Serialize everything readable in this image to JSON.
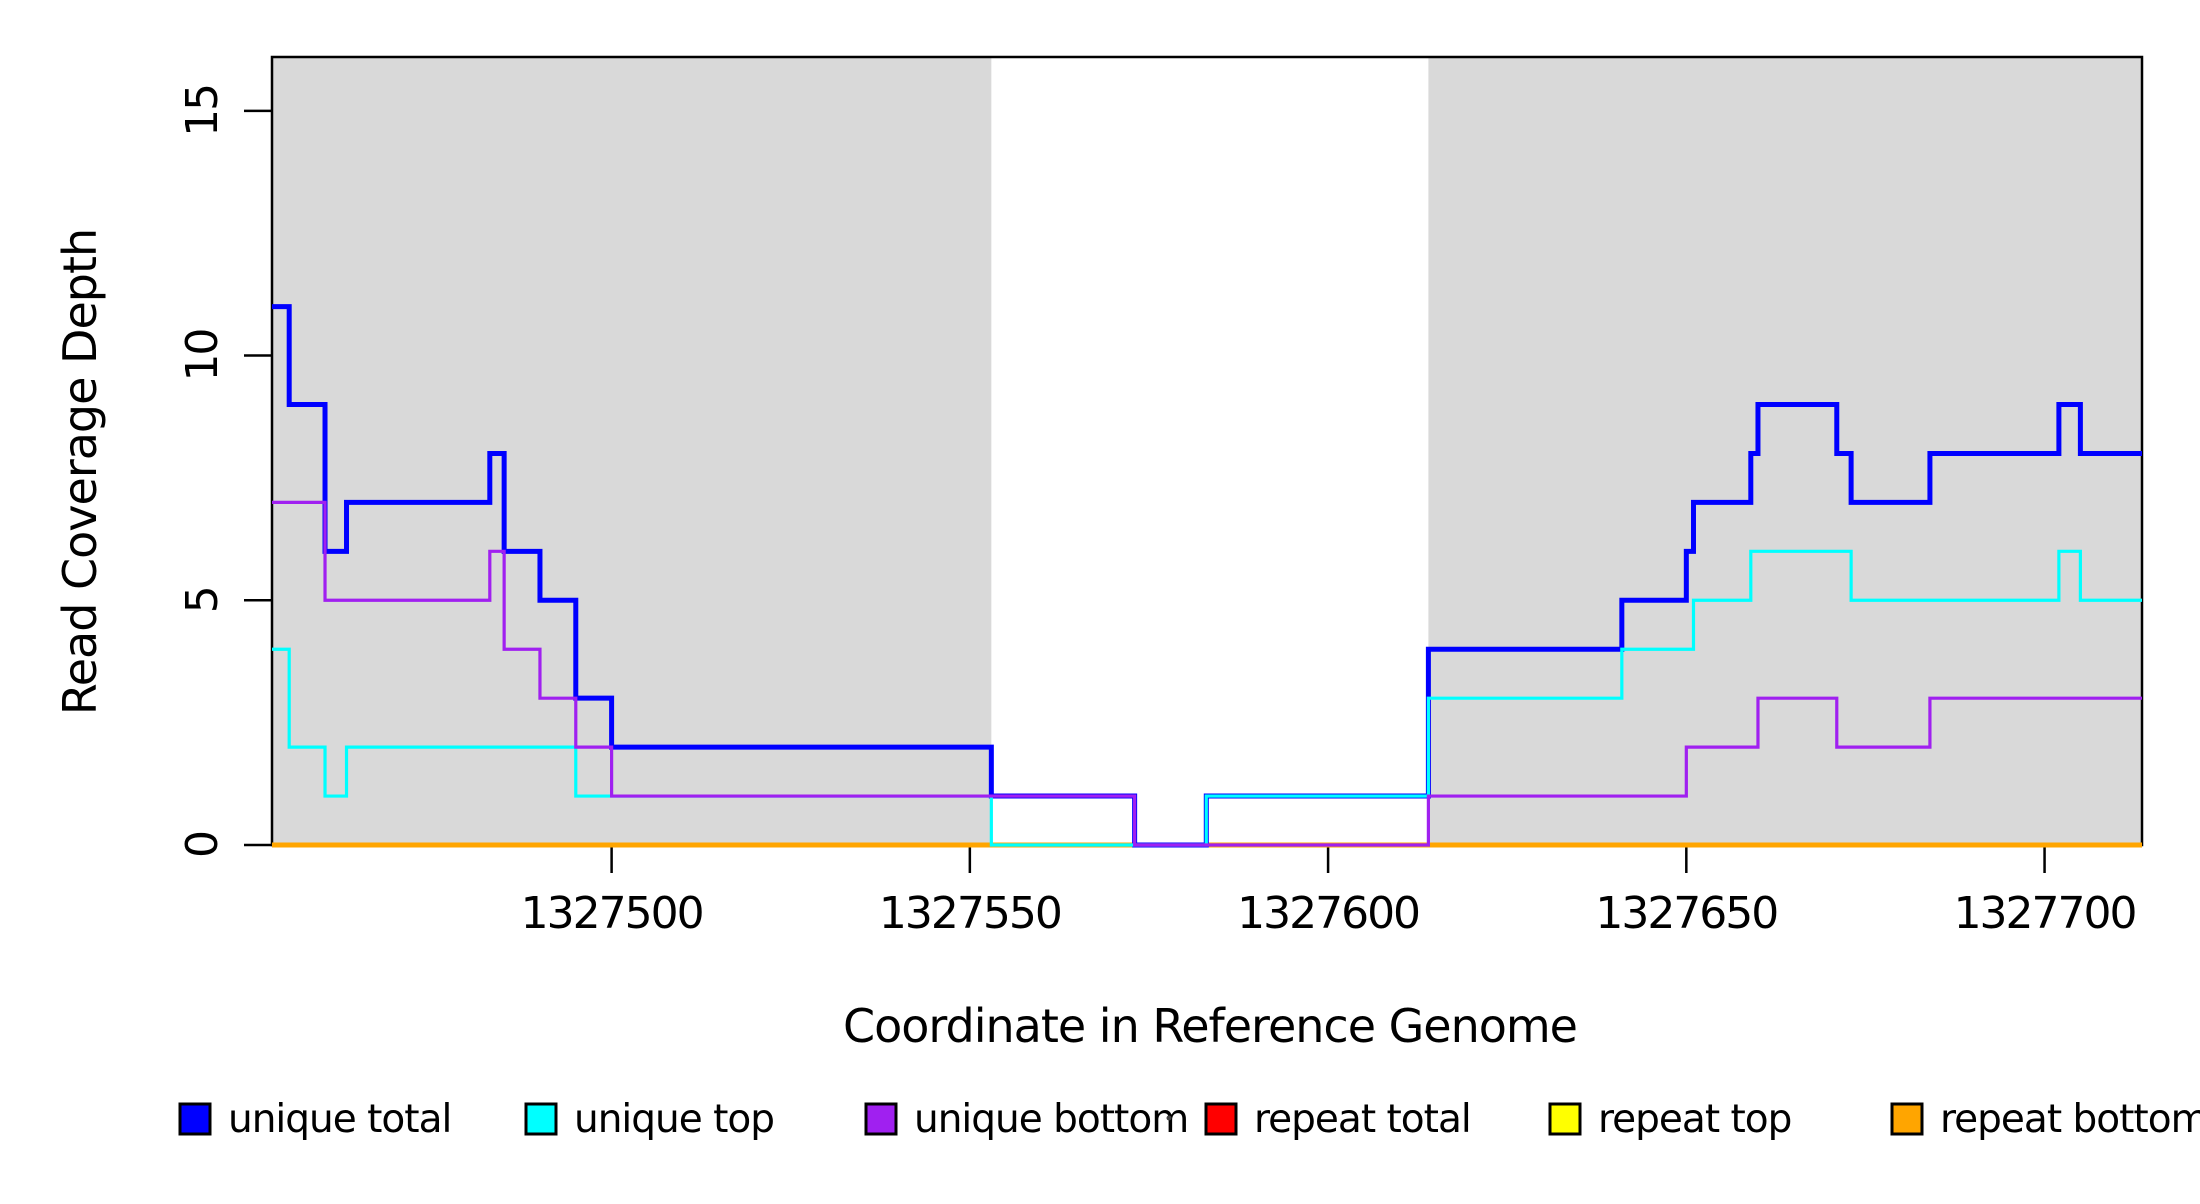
{
  "chart_data": {
    "type": "line",
    "subtype": "step-coverage",
    "title": "",
    "xlabel": "Coordinate in Reference Genome",
    "ylabel": "Read Coverage Depth",
    "xlim": [
      1327452.6,
      1327713.6
    ],
    "ylim": [
      0,
      16.1
    ],
    "x_ticks": [
      1327500,
      1327550,
      1327600,
      1327650,
      1327700
    ],
    "y_ticks": [
      0,
      5,
      10,
      15
    ],
    "grid": false,
    "background_color": "#ffffff",
    "shaded_regions": [
      {
        "name": "left-unique-block",
        "start": 1327452.6,
        "end": 1327553,
        "color": "#D9D9D9"
      },
      {
        "name": "right-unique-block",
        "start": 1327614,
        "end": 1327713.6,
        "color": "#D9D9D9"
      }
    ],
    "series": [
      {
        "name": "repeat total",
        "color": "#FF0000",
        "line_width": 3,
        "steps": [
          [
            1327452.6,
            0
          ],
          [
            1327713.6,
            0
          ]
        ]
      },
      {
        "name": "repeat top",
        "color": "#FFFF00",
        "line_width": 3,
        "steps": [
          [
            1327452.6,
            0
          ],
          [
            1327713.6,
            0
          ]
        ]
      },
      {
        "name": "repeat bottom",
        "color": "#FFA500",
        "line_width": 5,
        "steps": [
          [
            1327452.6,
            0
          ],
          [
            1327713.6,
            0
          ]
        ]
      },
      {
        "name": "unique total",
        "color": "#0000FF",
        "line_width": 5,
        "steps": [
          [
            1327452.6,
            11
          ],
          [
            1327455,
            9
          ],
          [
            1327460,
            6
          ],
          [
            1327463,
            7
          ],
          [
            1327483,
            8
          ],
          [
            1327485,
            6
          ],
          [
            1327490,
            5
          ],
          [
            1327495,
            3
          ],
          [
            1327500,
            2
          ],
          [
            1327553,
            1
          ],
          [
            1327573,
            0
          ],
          [
            1327583,
            1
          ],
          [
            1327614,
            4
          ],
          [
            1327641,
            5
          ],
          [
            1327650,
            6
          ],
          [
            1327651,
            7
          ],
          [
            1327659,
            8
          ],
          [
            1327660,
            9
          ],
          [
            1327671,
            8
          ],
          [
            1327673,
            7
          ],
          [
            1327684,
            8
          ],
          [
            1327702,
            9
          ],
          [
            1327705,
            8
          ],
          [
            1327713.6,
            8
          ]
        ]
      },
      {
        "name": "unique top",
        "color": "#00FFFF",
        "line_width": 3.2,
        "steps": [
          [
            1327452.6,
            4
          ],
          [
            1327455,
            2
          ],
          [
            1327460,
            1
          ],
          [
            1327463,
            2
          ],
          [
            1327495,
            1
          ],
          [
            1327553,
            0
          ],
          [
            1327583,
            1
          ],
          [
            1327614,
            3
          ],
          [
            1327641,
            4
          ],
          [
            1327651,
            5
          ],
          [
            1327659,
            6
          ],
          [
            1327673,
            5
          ],
          [
            1327702,
            6
          ],
          [
            1327705,
            5
          ],
          [
            1327713.6,
            5
          ]
        ]
      },
      {
        "name": "unique bottom",
        "color": "#A020F0",
        "line_width": 3.2,
        "steps": [
          [
            1327452.6,
            7
          ],
          [
            1327460,
            5
          ],
          [
            1327483,
            6
          ],
          [
            1327485,
            4
          ],
          [
            1327490,
            3
          ],
          [
            1327495,
            2
          ],
          [
            1327500,
            1
          ],
          [
            1327573,
            0
          ],
          [
            1327614,
            1
          ],
          [
            1327650,
            2
          ],
          [
            1327660,
            3
          ],
          [
            1327671,
            2
          ],
          [
            1327684,
            3
          ],
          [
            1327713.6,
            3
          ]
        ]
      }
    ],
    "legend": {
      "position": "bottom",
      "items": [
        {
          "label": "unique total",
          "color": "#0000FF"
        },
        {
          "label": "unique top",
          "color": "#00FFFF"
        },
        {
          "label": "unique bottom",
          "color": "#A020F0"
        },
        {
          "label": "repeat total",
          "color": "#FF0000"
        },
        {
          "label": "repeat top",
          "color": "#FFFF00"
        },
        {
          "label": "repeat bottom",
          "color": "#FFA500"
        }
      ]
    }
  }
}
